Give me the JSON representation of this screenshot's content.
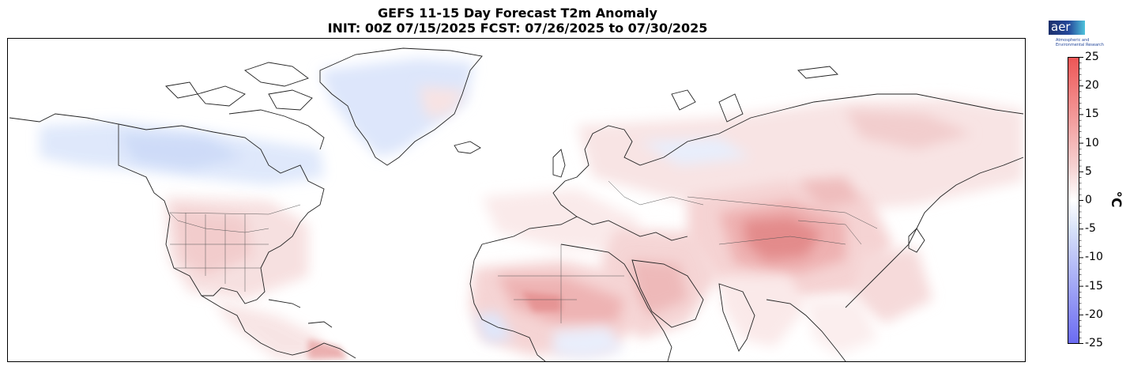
{
  "title": {
    "line1": "GEFS 11-15 Day Forecast T2m Anomaly",
    "line2": "INIT: 00Z 07/15/2025    FCST: 07/26/2025 to 07/30/2025"
  },
  "logo": {
    "name": "aer",
    "subtitle_line1": "Atmospheric and",
    "subtitle_line2": "Environmental Research",
    "colors": [
      "#1b2f6b",
      "#24479a",
      "#4fc3dc"
    ]
  },
  "colorbar": {
    "unit": "°C",
    "ticks": [
      "25",
      "20",
      "15",
      "10",
      "5",
      "0",
      "-5",
      "-10",
      "-15",
      "-20",
      "-25"
    ],
    "range": [
      -25,
      25
    ],
    "colors": {
      "cold": "#6b6bf2",
      "neutral": "#ffffff",
      "warm": "#ee5656"
    }
  },
  "map": {
    "projection": "equirectangular",
    "regions": "Northern Hemisphere: North America, Greenland, Europe, Africa, Asia",
    "features": [
      "coastlines",
      "country borders",
      "US state borders"
    ],
    "anomaly_pattern": [
      {
        "region": "Alaska / northwest Canada",
        "anomaly": "cool",
        "value_c": -4
      },
      {
        "region": "Greenland interior",
        "anomaly": "cool",
        "value_c": -2
      },
      {
        "region": "Western United States",
        "anomaly": "warm",
        "value_c": 4
      },
      {
        "region": "Sahara / North Africa",
        "anomaly": "warm",
        "value_c": 6
      },
      {
        "region": "Arabian Peninsula",
        "anomaly": "warm",
        "value_c": 5
      },
      {
        "region": "Central Asia / Mongolia",
        "anomaly": "warm",
        "value_c": 9
      },
      {
        "region": "Siberia",
        "anomaly": "warm",
        "value_c": 4
      },
      {
        "region": "West Africa coast",
        "anomaly": "cool",
        "value_c": -2
      }
    ]
  }
}
